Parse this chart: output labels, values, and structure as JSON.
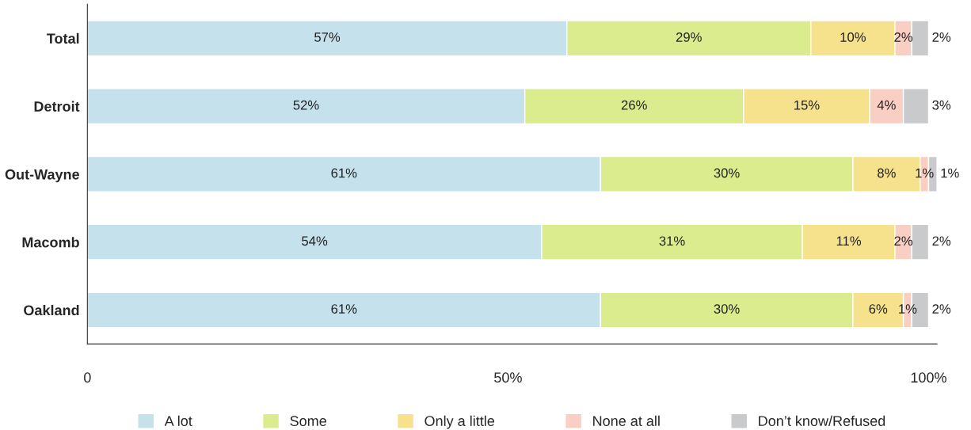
{
  "chart_data": {
    "type": "bar",
    "orientation": "horizontal",
    "stacked": true,
    "categories": [
      "Total",
      "Detroit",
      "Out-Wayne",
      "Macomb",
      "Oakland"
    ],
    "series": [
      {
        "name": "A lot",
        "color": "#c5e1eb",
        "values": [
          57,
          52,
          61,
          54,
          61
        ],
        "value_labels": [
          "57%",
          "52%",
          "61%",
          "54%",
          "61%"
        ]
      },
      {
        "name": "Some",
        "color": "#dbec8e",
        "values": [
          29,
          26,
          30,
          31,
          30
        ],
        "value_labels": [
          "29%",
          "26%",
          "30%",
          "31%",
          "30%"
        ]
      },
      {
        "name": "Only a little",
        "color": "#f6e28c",
        "values": [
          10,
          15,
          8,
          11,
          6
        ],
        "value_labels": [
          "10%",
          "15%",
          "8%",
          "11%",
          "6%"
        ]
      },
      {
        "name": "None at all",
        "color": "#f9cfc3",
        "values": [
          2,
          4,
          1,
          2,
          1
        ],
        "value_labels": [
          "2%",
          "4%",
          "1%",
          "2%",
          "1%"
        ]
      },
      {
        "name": "Don’t know/Refused",
        "color": "#c9cacc",
        "values": [
          2,
          3,
          1,
          2,
          2
        ],
        "value_labels": [
          "2%",
          "3%",
          "1%",
          "2%",
          "2%"
        ]
      }
    ],
    "xlim": [
      0,
      101
    ],
    "xticks": [
      0,
      {
        "value": 50,
        "label": "50%"
      },
      {
        "value": 100,
        "label": "100%"
      }
    ],
    "legend": "bottom",
    "grid": false
  }
}
